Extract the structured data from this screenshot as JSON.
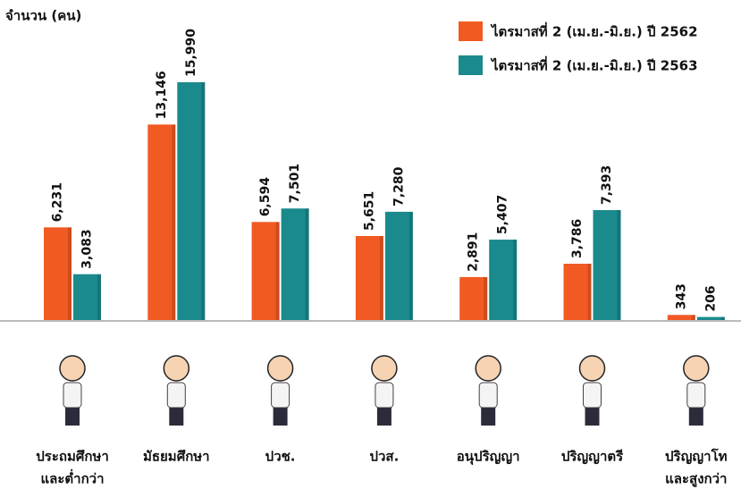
{
  "chart_data": {
    "type": "bar",
    "y_label": "จำนวน (คน)",
    "categories": [
      [
        "ประถมศึกษา",
        "และต่ำกว่า"
      ],
      [
        "มัธยมศึกษา"
      ],
      [
        "ปวช."
      ],
      [
        "ปวส."
      ],
      [
        "อนุปริญญา"
      ],
      [
        "ปริญญาตรี"
      ],
      [
        "ปริญญาโท",
        "และสูงกว่า"
      ]
    ],
    "series": [
      {
        "name": "ไตรมาสที่ 2 (เม.ย.-มิ.ย.) ปี 2562",
        "color": "#f15a22",
        "values": [
          6231,
          13146,
          6594,
          5651,
          2891,
          3786,
          343
        ],
        "value_labels": [
          "6,231",
          "13,146",
          "6,594",
          "5,651",
          "2,891",
          "3,786",
          "343"
        ]
      },
      {
        "name": "ไตรมาสที่ 2 (เม.ย.-มิ.ย.) ปี 2563",
        "color": "#1a8a8c",
        "values": [
          3083,
          15990,
          7501,
          7280,
          5407,
          7393,
          206
        ],
        "value_labels": [
          "3,083",
          "15,990",
          "7,501",
          "7,280",
          "5,407",
          "7,393",
          "206"
        ]
      }
    ]
  }
}
